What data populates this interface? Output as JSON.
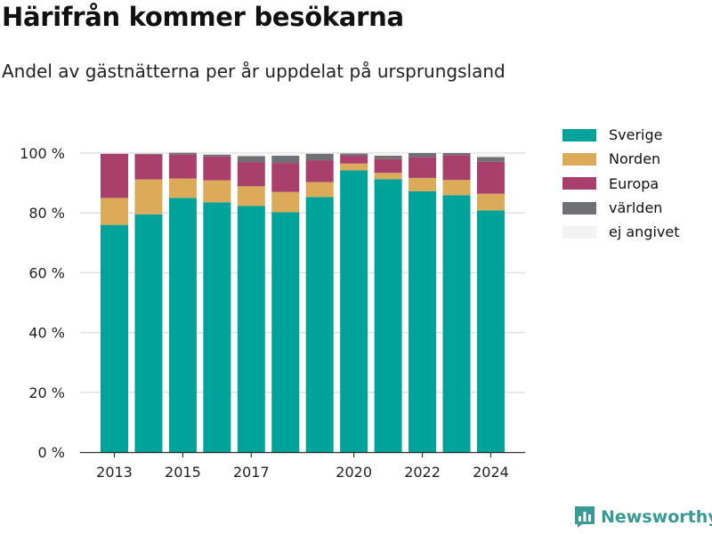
{
  "header": {
    "title": "Härifrån kommer besökarna",
    "subtitle": "Andel av gästnätterna per år uppdelat på ursprungsland"
  },
  "brand": {
    "name": "Newsworthy",
    "logo_icon": "bar-chart-flag-icon",
    "color": "#3a9a96"
  },
  "chart_data": {
    "type": "bar",
    "stacked": true,
    "categories": [
      2013,
      2014,
      2015,
      2016,
      2017,
      2018,
      2019,
      2020,
      2021,
      2022,
      2023,
      2024
    ],
    "x_tick_labels": [
      {
        "year": 2013,
        "label": "2013"
      },
      {
        "year": 2015,
        "label": "2015"
      },
      {
        "year": 2017,
        "label": "2017"
      },
      {
        "year": 2020,
        "label": "2020"
      },
      {
        "year": 2022,
        "label": "2022"
      },
      {
        "year": 2024,
        "label": "2024"
      }
    ],
    "y_tick_labels": [
      "0 %",
      "20 %",
      "40 %",
      "60 %",
      "80 %",
      "100 %"
    ],
    "y_ticks": [
      0,
      20,
      40,
      60,
      80,
      100
    ],
    "ylim": [
      0,
      100
    ],
    "grid": true,
    "legend_position": "right",
    "series": [
      {
        "name": "Sverige",
        "color": "#00a39a",
        "values": [
          76,
          79.5,
          85,
          83.5,
          82.3,
          80.2,
          85.3,
          94.2,
          91.3,
          87.2,
          85.9,
          80.8
        ]
      },
      {
        "name": "Norden",
        "color": "#dcab5a",
        "values": [
          9,
          11.7,
          6.5,
          7.4,
          6.6,
          6.8,
          5,
          2.3,
          2.1,
          4.5,
          5.1,
          5.6
        ]
      },
      {
        "name": "Europa",
        "color": "#a8406b",
        "values": [
          14.8,
          8.3,
          8,
          8,
          8.1,
          9.7,
          7.3,
          2.6,
          4.6,
          7,
          8.3,
          10.7
        ]
      },
      {
        "name": "världen",
        "color": "#6f7073",
        "values": [
          0,
          0.3,
          0.6,
          0.6,
          2,
          2.4,
          2.2,
          0.8,
          1.1,
          1.3,
          0.7,
          1.6
        ]
      },
      {
        "name": "ej angivet",
        "color": "#f3f3f3",
        "values": [
          0.2,
          0.2,
          0,
          0.5,
          1,
          0.9,
          0.2,
          0.1,
          0.9,
          0,
          0,
          1.3
        ]
      }
    ]
  }
}
